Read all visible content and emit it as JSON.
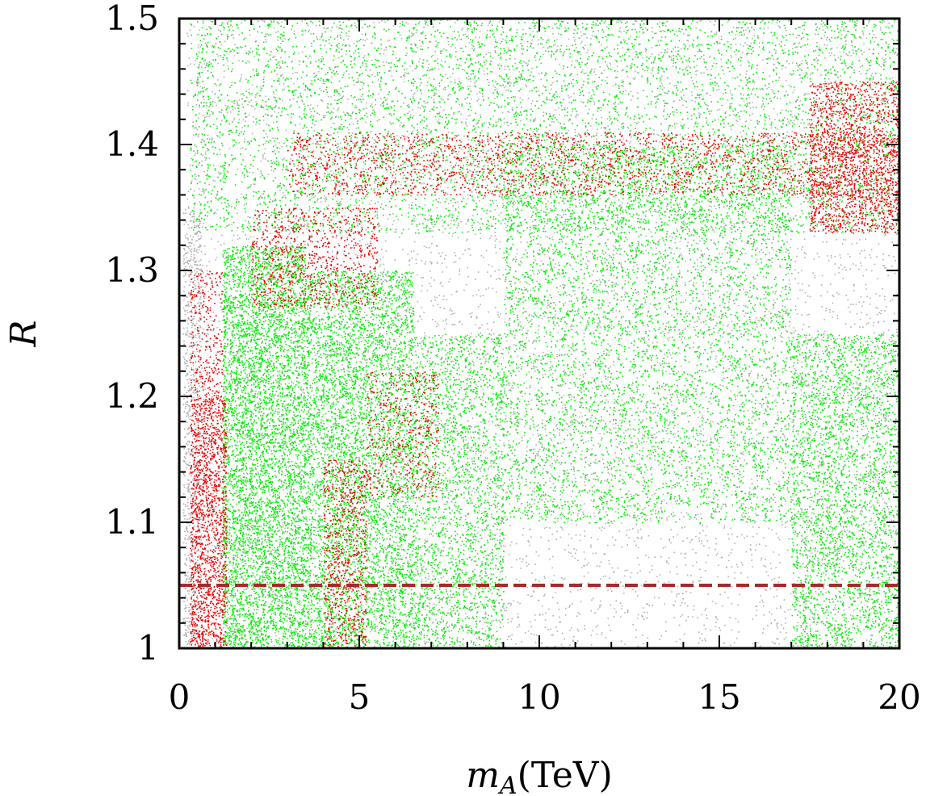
{
  "chart_data": {
    "type": "scatter",
    "xlabel": {
      "symbol": "m",
      "subscript": "A",
      "unit": "(TeV)"
    },
    "ylabel": "R",
    "xlim": [
      0,
      20
    ],
    "ylim": [
      1.0,
      1.5
    ],
    "x_ticks": [
      "0",
      "5",
      "10",
      "15",
      "20"
    ],
    "x_tick_values": [
      0,
      5,
      10,
      15,
      20
    ],
    "y_ticks": [
      "1",
      "1.1",
      "1.2",
      "1.3",
      "1.4",
      "1.5"
    ],
    "y_tick_values": [
      1.0,
      1.1,
      1.2,
      1.3,
      1.4,
      1.5
    ],
    "grid": false,
    "reference_line": {
      "y": 1.05,
      "style": "dashed",
      "color": "#a52a2a"
    },
    "series": [
      {
        "color": "#b0b0b0",
        "regions": [
          {
            "x": [
              0.2,
              20.0
            ],
            "y": [
              1.0,
              1.5
            ],
            "density": 1.0
          },
          {
            "x": [
              0.1,
              0.6
            ],
            "y": [
              1.0,
              1.35
            ],
            "density": 0.6
          }
        ]
      },
      {
        "color": "#00ee00",
        "regions": [
          {
            "x": [
              0.3,
              20.0
            ],
            "y": [
              1.33,
              1.5
            ],
            "density": 1.0
          },
          {
            "x": [
              1.2,
              3.5
            ],
            "y": [
              1.0,
              1.32
            ],
            "density": 1.0
          },
          {
            "x": [
              3.5,
              6.5
            ],
            "y": [
              1.0,
              1.3
            ],
            "density": 0.7
          },
          {
            "x": [
              6.5,
              9.0
            ],
            "y": [
              1.0,
              1.25
            ],
            "density": 0.45
          },
          {
            "x": [
              9.0,
              17.0
            ],
            "y": [
              1.1,
              1.4
            ],
            "density": 0.3
          },
          {
            "x": [
              17.0,
              20.0
            ],
            "y": [
              1.0,
              1.25
            ],
            "density": 0.5
          }
        ]
      },
      {
        "color": "#ee0000",
        "regions": [
          {
            "x": [
              0.3,
              1.3
            ],
            "y": [
              1.0,
              1.2
            ],
            "density": 1.0
          },
          {
            "x": [
              0.3,
              1.2
            ],
            "y": [
              1.2,
              1.3
            ],
            "density": 0.4
          },
          {
            "x": [
              2.0,
              5.5
            ],
            "y": [
              1.27,
              1.35
            ],
            "density": 0.4
          },
          {
            "x": [
              4.0,
              5.2
            ],
            "y": [
              1.0,
              1.15
            ],
            "density": 0.5
          },
          {
            "x": [
              5.2,
              7.2
            ],
            "y": [
              1.12,
              1.22
            ],
            "density": 0.3
          },
          {
            "x": [
              3.0,
              20.0
            ],
            "y": [
              1.36,
              1.41
            ],
            "density": 0.35
          },
          {
            "x": [
              17.5,
              20.0
            ],
            "y": [
              1.33,
              1.45
            ],
            "density": 0.7
          }
        ]
      }
    ]
  }
}
